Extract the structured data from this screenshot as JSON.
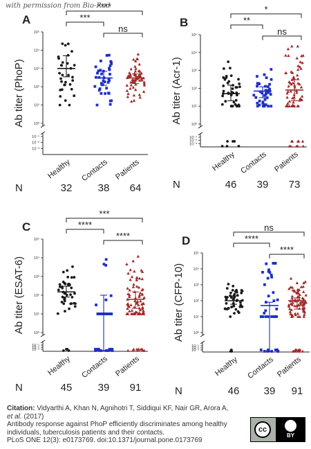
{
  "watermark": "with permission from Bio-Rad",
  "chart_data": [
    {
      "type": "scatter",
      "panel_label": "A",
      "ylabel": "Ab titer (PhoP)",
      "yscale": "log",
      "ytick_labels": [
        "10⁵",
        "10⁴",
        "10³",
        "10²",
        "10¹",
        "10⁰",
        "10⁻¹",
        "10⁻²",
        "10⁻³"
      ],
      "categories": [
        "Healthy",
        "Contacts",
        "Patients"
      ],
      "n_label": "N",
      "n_values": [
        "32",
        "38",
        "64"
      ],
      "series_colors": [
        "#1a1a1a",
        "#1f2fc4",
        "#9e2a2a"
      ],
      "medians": [
        1000,
        300,
        300
      ],
      "iqr": [
        [
          350,
          5000
        ],
        [
          120,
          700
        ],
        [
          150,
          500
        ]
      ],
      "low_values": [
        0,
        0,
        0
      ],
      "significance": [
        {
          "from": 0,
          "to": 2,
          "label": "****"
        },
        {
          "from": 0,
          "to": 1,
          "label": "***"
        },
        {
          "from": 1,
          "to": 2,
          "label": "ns"
        }
      ]
    },
    {
      "type": "scatter",
      "panel_label": "B",
      "ylabel": "Ab titer (Acr-1)",
      "yscale": "log",
      "ytick_labels": [
        "10⁵",
        "10⁴",
        "10³",
        "10²",
        "10¹",
        "10⁰",
        "10⁻¹",
        "10⁻²",
        "10⁻³"
      ],
      "categories": [
        "Healthy",
        "Contacts",
        "Patients"
      ],
      "n_label": "N",
      "n_values": [
        "46",
        "39",
        "73"
      ],
      "series_colors": [
        "#1a1a1a",
        "#1f2fc4",
        "#9e2a2a"
      ],
      "medians": [
        50,
        70,
        80
      ],
      "iqr": [
        [
          20,
          150
        ],
        [
          30,
          120
        ],
        [
          20,
          300
        ]
      ],
      "low_values": [
        6,
        0,
        10
      ],
      "significance": [
        {
          "from": 0,
          "to": 2,
          "label": "*"
        },
        {
          "from": 0,
          "to": 1,
          "label": "**"
        },
        {
          "from": 1,
          "to": 2,
          "label": "ns"
        }
      ]
    },
    {
      "type": "scatter",
      "panel_label": "C",
      "ylabel": "Ab titer (ESAT-6)",
      "yscale": "log",
      "ytick_labels": [
        "10⁵",
        "10⁴",
        "10³",
        "10²",
        "10¹",
        "10⁰",
        "10⁻¹",
        "10⁻²",
        "10⁻³"
      ],
      "categories": [
        "Healthy",
        "Contacts",
        "Patients"
      ],
      "n_label": "N",
      "n_values": [
        "45",
        "39",
        "91"
      ],
      "series_colors": [
        "#1a1a1a",
        "#1f2fc4",
        "#9e2a2a"
      ],
      "medians": [
        150,
        0.001,
        60
      ],
      "iqr": [
        [
          80,
          300
        ],
        [
          0.001,
          100
        ],
        [
          20,
          150
        ]
      ],
      "low_values": [
        4,
        14,
        10
      ],
      "significance": [
        {
          "from": 0,
          "to": 2,
          "label": "***"
        },
        {
          "from": 0,
          "to": 1,
          "label": "****"
        },
        {
          "from": 1,
          "to": 2,
          "label": "****"
        }
      ]
    },
    {
      "type": "scatter",
      "panel_label": "D",
      "ylabel": "Ab titer (CFP-10)",
      "yscale": "log",
      "ytick_labels": [
        "10⁵",
        "10⁴",
        "10³",
        "10²",
        "10¹",
        "10⁰",
        "10⁻¹",
        "10⁻²",
        "10⁻³"
      ],
      "categories": [
        "Healthy",
        "Contacts",
        "Patients"
      ],
      "n_label": "N",
      "n_values": [
        "46",
        "39",
        "91"
      ],
      "series_colors": [
        "#1a1a1a",
        "#1f2fc4",
        "#9e2a2a"
      ],
      "medians": [
        100,
        50,
        100
      ],
      "iqr": [
        [
          60,
          200
        ],
        [
          0.001,
          80
        ],
        [
          30,
          150
        ]
      ],
      "low_values": [
        3,
        10,
        12
      ],
      "significance": [
        {
          "from": 0,
          "to": 2,
          "label": "ns"
        },
        {
          "from": 0,
          "to": 1,
          "label": "****"
        },
        {
          "from": 1,
          "to": 2,
          "label": "****"
        }
      ]
    }
  ],
  "citation": {
    "lead": "Citation:",
    "authors": "Vidyarthi A, Khan N, Agnihotri T, Siddiqui KF, Nair GR, Arora A, ",
    "etal": "et al.",
    "year": " (2017)",
    "title": "Antibody response against PhoP efficiently discriminates among healthy individuals, tuberculosis patients and their contacts.",
    "journal": "PLoS ONE 12(3): e0173769. doi:10.1371/journal.pone.0173769"
  },
  "license": {
    "cc": "cc",
    "by": "BY"
  }
}
